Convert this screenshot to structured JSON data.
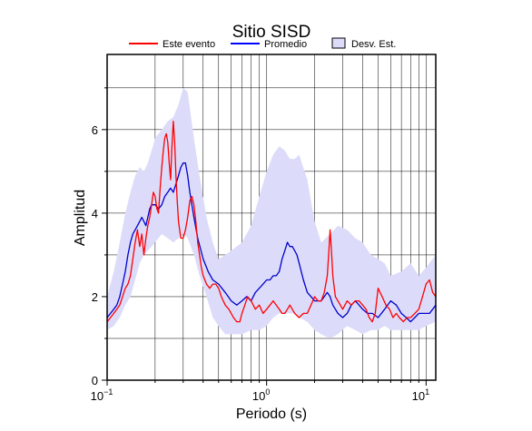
{
  "chart_data": {
    "type": "line",
    "title": "Sitio SISD",
    "xlabel": "Periodo (s)",
    "ylabel": "Amplitud",
    "xscale": "log",
    "xlim": [
      0.1,
      11.5
    ],
    "ylim": [
      0,
      7.8
    ],
    "x_tick_labels": [
      {
        "base": "10",
        "exp": "−1",
        "value": 0.1
      },
      {
        "base": "10",
        "exp": "0",
        "value": 1
      },
      {
        "base": "10",
        "exp": "1",
        "value": 10
      }
    ],
    "y_ticks": [
      0,
      2,
      4,
      6
    ],
    "grid": true,
    "legend": {
      "position": "top",
      "entries": [
        {
          "label": "Este evento",
          "color": "#ff0000",
          "kind": "line"
        },
        {
          "label": "Promedio",
          "color": "#0000ff",
          "kind": "line"
        },
        {
          "label": "Desv. Est.",
          "color": "#dcdcfa",
          "kind": "box"
        }
      ]
    },
    "colors": {
      "este_evento": "#ff0000",
      "promedio": "#0000cc",
      "band": "#dcdcfa"
    },
    "band": {
      "name": "Desv. Est.",
      "x": [
        0.1,
        0.11,
        0.12,
        0.13,
        0.14,
        0.15,
        0.16,
        0.17,
        0.18,
        0.19,
        0.2,
        0.22,
        0.24,
        0.26,
        0.28,
        0.3,
        0.32,
        0.35,
        0.38,
        0.42,
        0.46,
        0.5,
        0.55,
        0.6,
        0.7,
        0.8,
        0.9,
        1.0,
        1.1,
        1.2,
        1.3,
        1.4,
        1.5,
        1.6,
        1.8,
        2.0,
        2.2,
        2.5,
        2.8,
        3.2,
        3.6,
        4.0,
        4.5,
        5.0,
        5.5,
        6.0,
        7.0,
        8.0,
        9.0,
        10.0,
        11.5
      ],
      "upper": [
        2.0,
        2.6,
        3.3,
        4.0,
        4.5,
        4.9,
        5.1,
        5.0,
        5.2,
        5.5,
        5.8,
        6.0,
        6.2,
        6.3,
        6.6,
        7.0,
        6.9,
        5.8,
        4.9,
        3.9,
        3.3,
        2.9,
        3.0,
        3.1,
        3.3,
        3.7,
        4.4,
        5.0,
        5.4,
        5.6,
        5.5,
        5.3,
        5.3,
        5.4,
        4.8,
        3.8,
        3.3,
        3.5,
        3.7,
        3.6,
        3.4,
        3.3,
        3.0,
        2.9,
        2.8,
        2.5,
        2.6,
        2.8,
        2.5,
        2.7,
        3.0
      ],
      "lower": [
        1.2,
        1.3,
        1.5,
        1.8,
        2.0,
        2.4,
        2.8,
        3.0,
        3.1,
        3.2,
        3.3,
        3.5,
        3.4,
        3.3,
        3.4,
        3.5,
        3.4,
        3.0,
        2.5,
        2.0,
        1.5,
        1.3,
        1.1,
        1.1,
        1.1,
        1.2,
        1.2,
        1.3,
        1.5,
        1.6,
        1.6,
        1.6,
        1.6,
        1.5,
        1.4,
        1.2,
        1.1,
        1.0,
        1.1,
        1.3,
        1.2,
        1.1,
        1.2,
        1.2,
        1.3,
        1.2,
        1.2,
        1.2,
        1.2,
        1.3,
        1.4
      ]
    },
    "series": [
      {
        "name": "Este evento",
        "color": "#ff0000",
        "x": [
          0.1,
          0.105,
          0.11,
          0.115,
          0.12,
          0.125,
          0.13,
          0.135,
          0.14,
          0.145,
          0.15,
          0.155,
          0.16,
          0.165,
          0.17,
          0.175,
          0.18,
          0.185,
          0.19,
          0.195,
          0.2,
          0.205,
          0.21,
          0.215,
          0.22,
          0.225,
          0.23,
          0.235,
          0.24,
          0.245,
          0.25,
          0.255,
          0.26,
          0.265,
          0.27,
          0.275,
          0.28,
          0.29,
          0.3,
          0.31,
          0.32,
          0.33,
          0.34,
          0.35,
          0.36,
          0.37,
          0.38,
          0.39,
          0.4,
          0.42,
          0.44,
          0.46,
          0.48,
          0.5,
          0.52,
          0.55,
          0.58,
          0.6,
          0.62,
          0.65,
          0.68,
          0.7,
          0.73,
          0.76,
          0.8,
          0.85,
          0.9,
          0.95,
          1.0,
          1.05,
          1.1,
          1.15,
          1.2,
          1.25,
          1.3,
          1.35,
          1.4,
          1.5,
          1.6,
          1.7,
          1.8,
          1.9,
          2.0,
          2.1,
          2.2,
          2.3,
          2.4,
          2.45,
          2.5,
          2.55,
          2.6,
          2.7,
          2.8,
          2.9,
          3.0,
          3.2,
          3.4,
          3.6,
          3.8,
          4.0,
          4.2,
          4.4,
          4.6,
          4.8,
          5.0,
          5.3,
          5.6,
          5.9,
          6.2,
          6.5,
          6.8,
          7.2,
          7.6,
          8.0,
          8.5,
          9.0,
          9.5,
          10.0,
          10.5,
          11.0,
          11.5
        ],
        "y": [
          1.4,
          1.5,
          1.6,
          1.7,
          1.8,
          2.0,
          2.2,
          2.3,
          2.5,
          2.9,
          3.3,
          3.6,
          3.2,
          3.5,
          3.0,
          3.4,
          3.7,
          3.9,
          4.2,
          4.5,
          4.4,
          4.1,
          4.0,
          4.6,
          5.1,
          5.5,
          5.8,
          5.9,
          5.7,
          5.2,
          4.8,
          5.6,
          6.2,
          5.7,
          4.9,
          4.3,
          3.8,
          3.4,
          3.4,
          3.6,
          3.9,
          4.3,
          4.4,
          4.2,
          3.8,
          3.3,
          3.0,
          2.7,
          2.5,
          2.3,
          2.2,
          2.3,
          2.3,
          2.2,
          2.0,
          1.8,
          1.7,
          1.6,
          1.5,
          1.4,
          1.4,
          1.6,
          1.8,
          2.0,
          1.9,
          1.7,
          1.8,
          1.6,
          1.7,
          1.8,
          1.9,
          1.8,
          1.7,
          1.6,
          1.6,
          1.7,
          1.8,
          1.6,
          1.5,
          1.6,
          1.6,
          1.8,
          2.0,
          1.9,
          1.9,
          2.1,
          2.5,
          3.0,
          3.6,
          3.1,
          2.5,
          2.0,
          1.9,
          1.8,
          1.7,
          1.9,
          1.8,
          1.9,
          1.9,
          1.8,
          1.7,
          1.5,
          1.4,
          1.6,
          2.2,
          2.0,
          1.8,
          1.7,
          1.5,
          1.6,
          1.5,
          1.4,
          1.5,
          1.5,
          1.6,
          1.7,
          2.0,
          2.3,
          2.4,
          2.1,
          2.0
        ]
      },
      {
        "name": "Promedio",
        "color": "#0000cc",
        "x": [
          0.1,
          0.105,
          0.11,
          0.115,
          0.12,
          0.125,
          0.13,
          0.135,
          0.14,
          0.145,
          0.15,
          0.155,
          0.16,
          0.165,
          0.17,
          0.175,
          0.18,
          0.185,
          0.19,
          0.2,
          0.21,
          0.22,
          0.23,
          0.24,
          0.25,
          0.26,
          0.27,
          0.28,
          0.29,
          0.3,
          0.31,
          0.32,
          0.33,
          0.35,
          0.37,
          0.4,
          0.43,
          0.46,
          0.5,
          0.55,
          0.6,
          0.65,
          0.7,
          0.75,
          0.8,
          0.85,
          0.9,
          0.95,
          1.0,
          1.05,
          1.1,
          1.15,
          1.2,
          1.25,
          1.3,
          1.35,
          1.4,
          1.45,
          1.5,
          1.55,
          1.6,
          1.7,
          1.8,
          1.9,
          2.0,
          2.1,
          2.2,
          2.3,
          2.4,
          2.5,
          2.6,
          2.8,
          3.0,
          3.2,
          3.4,
          3.6,
          3.8,
          4.0,
          4.3,
          4.6,
          5.0,
          5.5,
          6.0,
          6.5,
          7.0,
          7.5,
          8.0,
          8.5,
          9.0,
          9.5,
          10.0,
          10.5,
          11.0,
          11.5
        ],
        "y": [
          1.5,
          1.6,
          1.7,
          1.8,
          2.0,
          2.3,
          2.6,
          3.0,
          3.3,
          3.5,
          3.6,
          3.7,
          3.8,
          3.9,
          3.8,
          3.7,
          3.9,
          4.1,
          4.2,
          4.2,
          4.1,
          4.2,
          4.4,
          4.5,
          4.6,
          4.5,
          4.7,
          4.9,
          5.1,
          5.2,
          5.2,
          4.9,
          4.5,
          3.9,
          3.4,
          2.9,
          2.6,
          2.4,
          2.3,
          2.1,
          1.9,
          1.8,
          1.9,
          2.0,
          1.9,
          2.1,
          2.2,
          2.3,
          2.4,
          2.4,
          2.5,
          2.5,
          2.6,
          2.9,
          3.1,
          3.3,
          3.2,
          3.2,
          3.1,
          3.0,
          2.8,
          2.4,
          2.1,
          2.0,
          1.9,
          1.9,
          1.9,
          2.0,
          2.1,
          2.0,
          1.8,
          1.6,
          1.5,
          1.6,
          1.8,
          1.9,
          1.8,
          1.7,
          1.6,
          1.6,
          1.5,
          1.7,
          1.9,
          1.8,
          1.6,
          1.5,
          1.4,
          1.5,
          1.6,
          1.6,
          1.6,
          1.6,
          1.7,
          1.8
        ]
      }
    ]
  }
}
